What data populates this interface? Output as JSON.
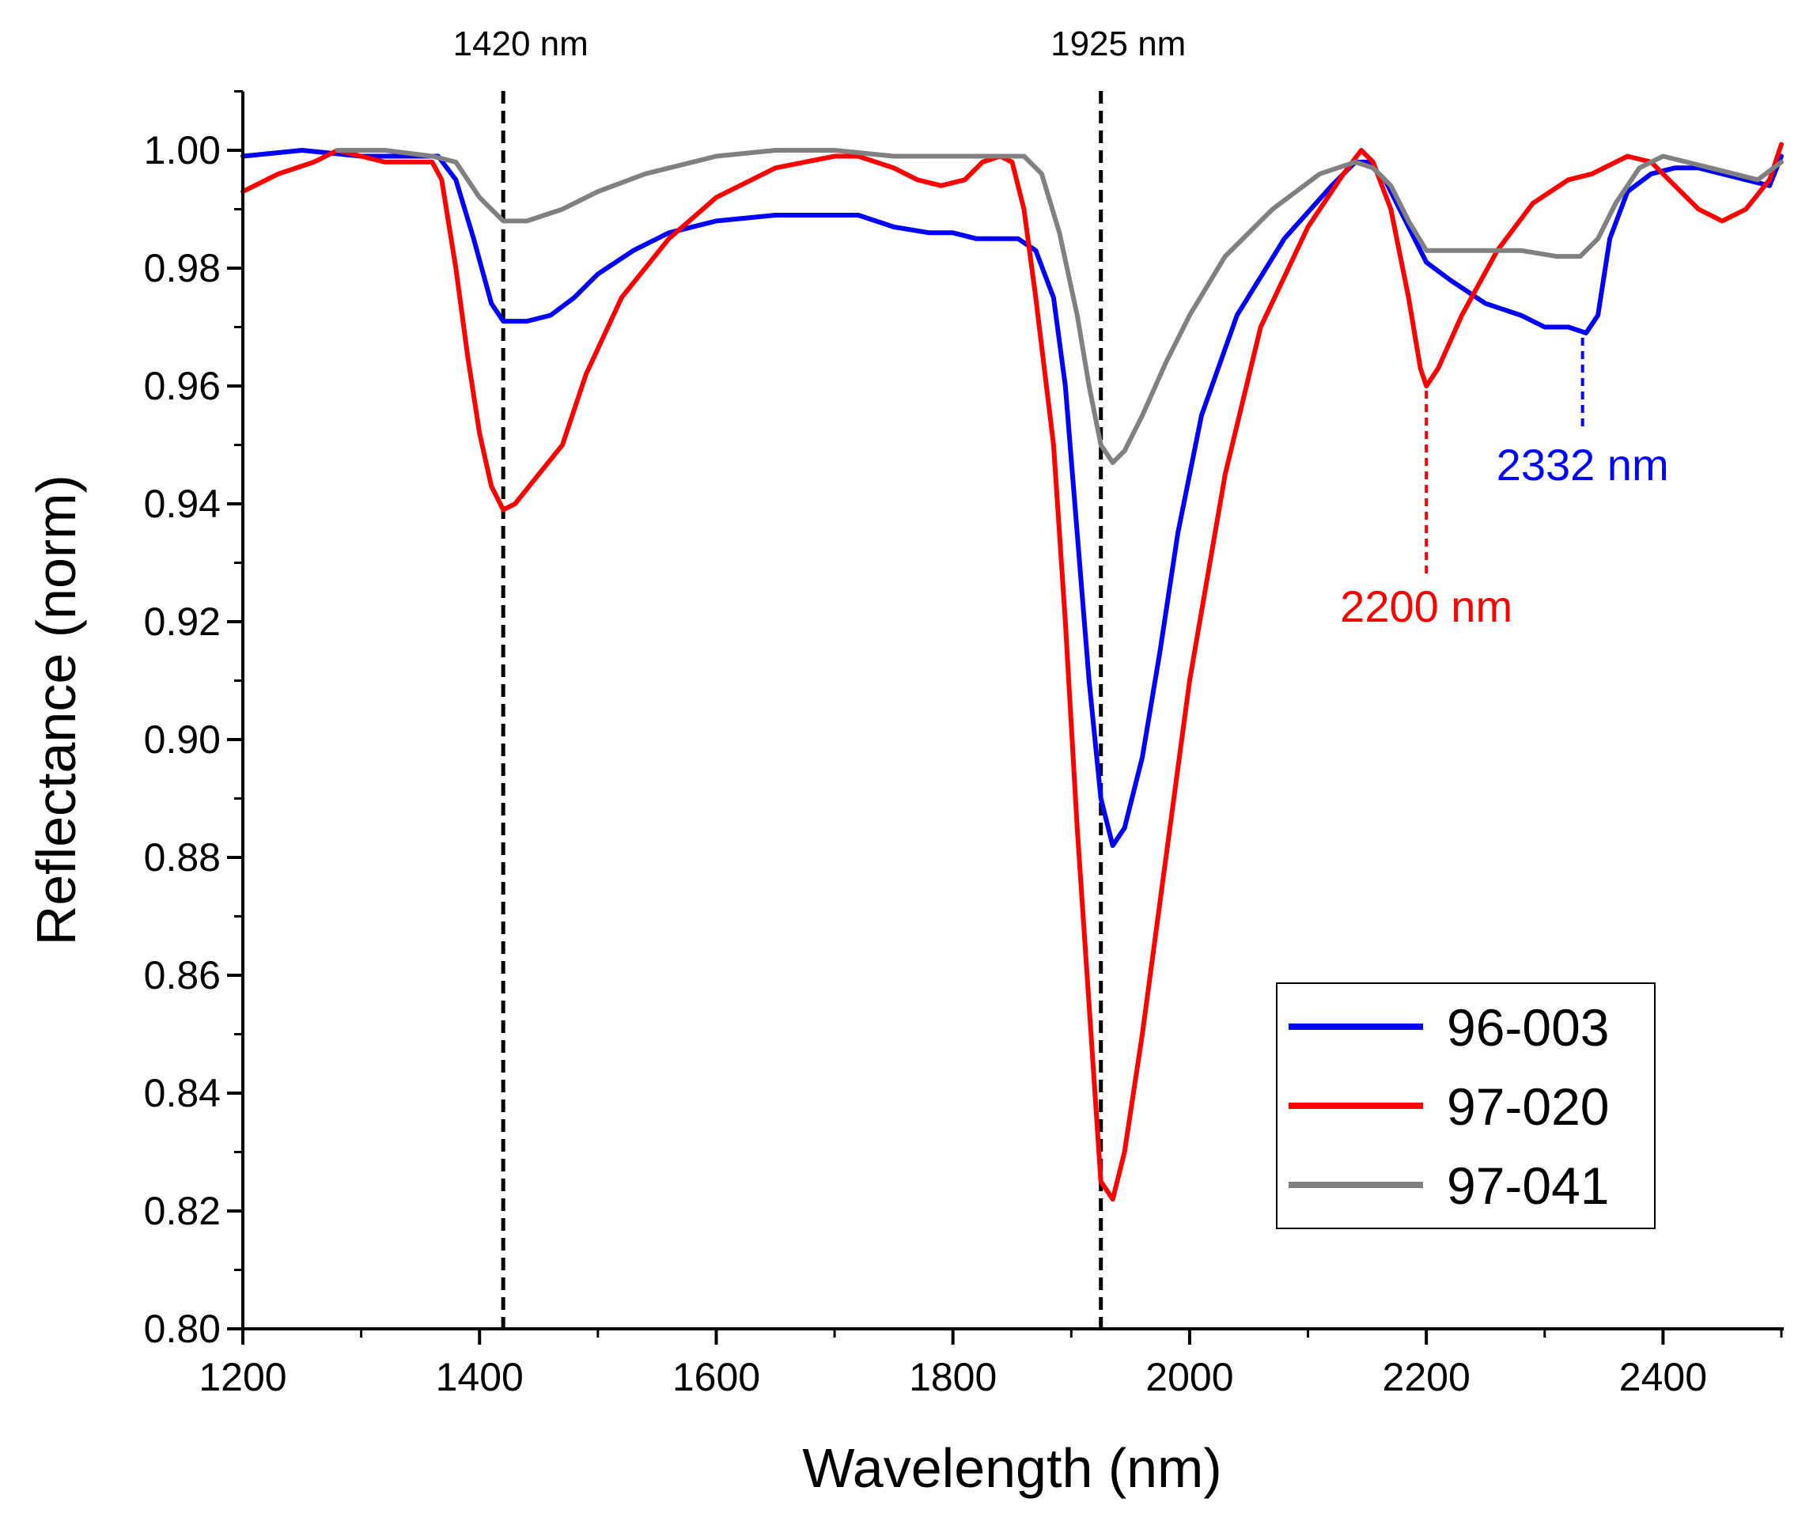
{
  "chart_data": {
    "type": "line",
    "xlabel": "Wavelength (nm)",
    "ylabel": "Reflectance (norm)",
    "xlim": [
      1200,
      2500
    ],
    "ylim": [
      0.8,
      1.01
    ],
    "x_major_ticks": [
      1200,
      1400,
      1600,
      1800,
      2000,
      2200,
      2400
    ],
    "x_minor_ticks": [
      1300,
      1500,
      1700,
      1900,
      2100,
      2300
    ],
    "y_major_ticks": [
      0.8,
      0.82,
      0.84,
      0.86,
      0.88,
      0.9,
      0.92,
      0.94,
      0.96,
      0.98,
      1.0
    ],
    "x_tick_labels": [
      "1200",
      "1400",
      "1600",
      "1800",
      "2000",
      "2200",
      "2400"
    ],
    "y_tick_labels": [
      "0.80",
      "0.82",
      "0.84",
      "0.86",
      "0.88",
      "0.90",
      "0.92",
      "0.94",
      "0.96",
      "0.98",
      "1.00"
    ],
    "series": [
      {
        "name": "96-003",
        "color": "#0000ff",
        "points": [
          [
            1200,
            0.999
          ],
          [
            1250,
            1.0
          ],
          [
            1300,
            0.999
          ],
          [
            1340,
            0.999
          ],
          [
            1365,
            0.999
          ],
          [
            1380,
            0.995
          ],
          [
            1395,
            0.985
          ],
          [
            1410,
            0.974
          ],
          [
            1420,
            0.971
          ],
          [
            1440,
            0.971
          ],
          [
            1460,
            0.972
          ],
          [
            1480,
            0.975
          ],
          [
            1500,
            0.979
          ],
          [
            1530,
            0.983
          ],
          [
            1560,
            0.986
          ],
          [
            1600,
            0.988
          ],
          [
            1650,
            0.989
          ],
          [
            1700,
            0.989
          ],
          [
            1720,
            0.989
          ],
          [
            1750,
            0.987
          ],
          [
            1780,
            0.986
          ],
          [
            1800,
            0.986
          ],
          [
            1820,
            0.985
          ],
          [
            1840,
            0.985
          ],
          [
            1855,
            0.985
          ],
          [
            1870,
            0.983
          ],
          [
            1885,
            0.975
          ],
          [
            1895,
            0.96
          ],
          [
            1905,
            0.935
          ],
          [
            1915,
            0.91
          ],
          [
            1925,
            0.89
          ],
          [
            1935,
            0.882
          ],
          [
            1945,
            0.885
          ],
          [
            1960,
            0.897
          ],
          [
            1975,
            0.915
          ],
          [
            1990,
            0.935
          ],
          [
            2010,
            0.955
          ],
          [
            2040,
            0.972
          ],
          [
            2080,
            0.985
          ],
          [
            2120,
            0.994
          ],
          [
            2140,
            0.998
          ],
          [
            2150,
            0.998
          ],
          [
            2165,
            0.995
          ],
          [
            2185,
            0.987
          ],
          [
            2200,
            0.981
          ],
          [
            2220,
            0.978
          ],
          [
            2250,
            0.974
          ],
          [
            2280,
            0.972
          ],
          [
            2300,
            0.97
          ],
          [
            2320,
            0.97
          ],
          [
            2335,
            0.969
          ],
          [
            2345,
            0.972
          ],
          [
            2355,
            0.985
          ],
          [
            2370,
            0.993
          ],
          [
            2390,
            0.996
          ],
          [
            2410,
            0.997
          ],
          [
            2430,
            0.997
          ],
          [
            2450,
            0.996
          ],
          [
            2470,
            0.995
          ],
          [
            2490,
            0.994
          ],
          [
            2500,
            0.999
          ]
        ]
      },
      {
        "name": "97-020",
        "color": "#ff0000",
        "points": [
          [
            1200,
            0.993
          ],
          [
            1230,
            0.996
          ],
          [
            1260,
            0.998
          ],
          [
            1280,
            1.0
          ],
          [
            1300,
            0.999
          ],
          [
            1320,
            0.998
          ],
          [
            1360,
            0.998
          ],
          [
            1368,
            0.995
          ],
          [
            1380,
            0.98
          ],
          [
            1390,
            0.965
          ],
          [
            1400,
            0.952
          ],
          [
            1410,
            0.943
          ],
          [
            1420,
            0.939
          ],
          [
            1430,
            0.94
          ],
          [
            1450,
            0.945
          ],
          [
            1470,
            0.95
          ],
          [
            1490,
            0.962
          ],
          [
            1520,
            0.975
          ],
          [
            1560,
            0.985
          ],
          [
            1600,
            0.992
          ],
          [
            1650,
            0.997
          ],
          [
            1700,
            0.999
          ],
          [
            1720,
            0.999
          ],
          [
            1750,
            0.997
          ],
          [
            1770,
            0.995
          ],
          [
            1790,
            0.994
          ],
          [
            1810,
            0.995
          ],
          [
            1825,
            0.998
          ],
          [
            1840,
            0.999
          ],
          [
            1850,
            0.998
          ],
          [
            1860,
            0.99
          ],
          [
            1870,
            0.975
          ],
          [
            1885,
            0.95
          ],
          [
            1895,
            0.92
          ],
          [
            1905,
            0.885
          ],
          [
            1915,
            0.855
          ],
          [
            1925,
            0.825
          ],
          [
            1935,
            0.822
          ],
          [
            1945,
            0.83
          ],
          [
            1960,
            0.85
          ],
          [
            1980,
            0.88
          ],
          [
            2000,
            0.91
          ],
          [
            2030,
            0.945
          ],
          [
            2060,
            0.97
          ],
          [
            2100,
            0.987
          ],
          [
            2130,
            0.996
          ],
          [
            2145,
            1.0
          ],
          [
            2155,
            0.998
          ],
          [
            2170,
            0.99
          ],
          [
            2185,
            0.975
          ],
          [
            2195,
            0.963
          ],
          [
            2200,
            0.96
          ],
          [
            2210,
            0.963
          ],
          [
            2230,
            0.972
          ],
          [
            2260,
            0.983
          ],
          [
            2290,
            0.991
          ],
          [
            2320,
            0.995
          ],
          [
            2340,
            0.996
          ],
          [
            2360,
            0.998
          ],
          [
            2370,
            0.999
          ],
          [
            2390,
            0.998
          ],
          [
            2410,
            0.994
          ],
          [
            2430,
            0.99
          ],
          [
            2450,
            0.988
          ],
          [
            2470,
            0.99
          ],
          [
            2490,
            0.995
          ],
          [
            2500,
            1.001
          ]
        ]
      },
      {
        "name": "97-041",
        "color": "#808080",
        "points": [
          [
            1280,
            1.0
          ],
          [
            1320,
            1.0
          ],
          [
            1360,
            0.999
          ],
          [
            1380,
            0.998
          ],
          [
            1400,
            0.992
          ],
          [
            1420,
            0.988
          ],
          [
            1440,
            0.988
          ],
          [
            1470,
            0.99
          ],
          [
            1500,
            0.993
          ],
          [
            1540,
            0.996
          ],
          [
            1600,
            0.999
          ],
          [
            1650,
            1.0
          ],
          [
            1700,
            1.0
          ],
          [
            1750,
            0.999
          ],
          [
            1800,
            0.999
          ],
          [
            1840,
            0.999
          ],
          [
            1860,
            0.999
          ],
          [
            1875,
            0.996
          ],
          [
            1890,
            0.986
          ],
          [
            1905,
            0.972
          ],
          [
            1915,
            0.96
          ],
          [
            1925,
            0.95
          ],
          [
            1935,
            0.947
          ],
          [
            1945,
            0.949
          ],
          [
            1960,
            0.955
          ],
          [
            1980,
            0.964
          ],
          [
            2000,
            0.972
          ],
          [
            2030,
            0.982
          ],
          [
            2070,
            0.99
          ],
          [
            2110,
            0.996
          ],
          [
            2140,
            0.998
          ],
          [
            2155,
            0.997
          ],
          [
            2170,
            0.994
          ],
          [
            2185,
            0.988
          ],
          [
            2200,
            0.983
          ],
          [
            2220,
            0.983
          ],
          [
            2250,
            0.983
          ],
          [
            2280,
            0.983
          ],
          [
            2310,
            0.982
          ],
          [
            2330,
            0.982
          ],
          [
            2345,
            0.985
          ],
          [
            2360,
            0.991
          ],
          [
            2380,
            0.997
          ],
          [
            2400,
            0.999
          ],
          [
            2420,
            0.998
          ],
          [
            2440,
            0.997
          ],
          [
            2460,
            0.996
          ],
          [
            2480,
            0.995
          ],
          [
            2500,
            0.998
          ]
        ]
      }
    ],
    "reference_lines": [
      {
        "x": 1420,
        "label": "1420 nm",
        "color": "#000000"
      },
      {
        "x": 1925,
        "label": "1925 nm",
        "color": "#000000"
      }
    ],
    "peak_markers": [
      {
        "x": 2200,
        "y_from": 0.96,
        "y_to": 0.928,
        "label": "2200 nm",
        "label_y": 0.92,
        "color": "#ff0000"
      },
      {
        "x": 2332,
        "y_from": 0.969,
        "y_to": 0.953,
        "label": "2332 nm",
        "label_y": 0.944,
        "color": "#0000ff"
      }
    ],
    "legend": {
      "position": "lower-right",
      "entries": [
        "96-003",
        "97-020",
        "97-041"
      ]
    }
  }
}
